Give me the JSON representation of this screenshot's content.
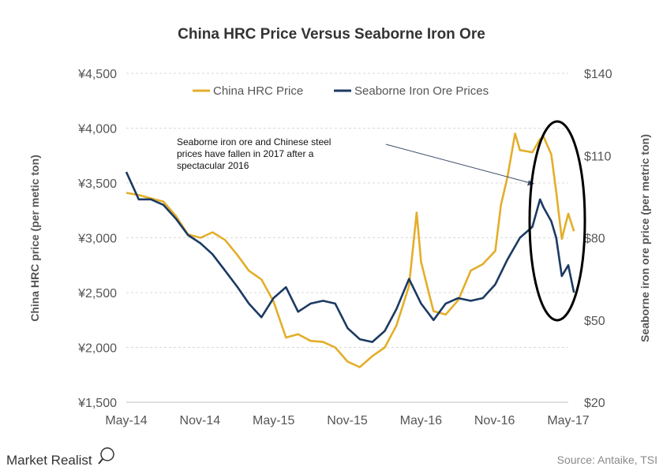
{
  "chart_data": {
    "type": "line",
    "title": "China HRC Price Versus Seaborne Iron Ore",
    "ylabel_left": "China HRC price (per metic ton)",
    "ylabel_right": "Seaborne iron ore price (per metric ton)",
    "ylim_left": [
      1500,
      4500
    ],
    "ylim_right": [
      20,
      140
    ],
    "yticks_left": [
      "¥4,500",
      "¥4,000",
      "¥3,500",
      "¥3,000",
      "¥2,500",
      "¥2,000",
      "¥1,500"
    ],
    "yticks_right": [
      "$140",
      "$110",
      "$80",
      "$50",
      "$20"
    ],
    "xticks": [
      "May-14",
      "Nov-14",
      "May-15",
      "Nov-15",
      "May-16",
      "Nov-16",
      "May-17"
    ],
    "grid": true,
    "legend_position": "top-center",
    "series": [
      {
        "name": "China HRC Price",
        "axis": "left",
        "color": "#E3AE2A",
        "x": [
          "2014-05-01",
          "2014-06-01",
          "2014-07-01",
          "2014-08-01",
          "2014-09-01",
          "2014-10-01",
          "2014-11-01",
          "2014-12-01",
          "2015-01-01",
          "2015-02-01",
          "2015-03-01",
          "2015-04-01",
          "2015-05-01",
          "2015-06-01",
          "2015-07-01",
          "2015-08-01",
          "2015-09-01",
          "2015-10-01",
          "2015-11-01",
          "2015-12-01",
          "2016-01-01",
          "2016-02-01",
          "2016-03-01",
          "2016-04-01",
          "2016-04-20",
          "2016-05-01",
          "2016-05-20",
          "2016-06-01",
          "2016-07-01",
          "2016-08-01",
          "2016-09-01",
          "2016-10-01",
          "2016-11-01",
          "2016-11-15",
          "2016-12-01",
          "2016-12-20",
          "2017-01-01",
          "2017-02-01",
          "2017-02-20",
          "2017-03-01",
          "2017-03-20",
          "2017-04-01",
          "2017-04-15",
          "2017-05-01",
          "2017-05-15"
        ],
        "values": [
          3410,
          3390,
          3360,
          3330,
          3200,
          3030,
          3000,
          3050,
          2980,
          2840,
          2700,
          2620,
          2420,
          2090,
          2120,
          2060,
          2050,
          2000,
          1870,
          1820,
          1920,
          2000,
          2200,
          2560,
          3230,
          2780,
          2500,
          2330,
          2300,
          2430,
          2700,
          2760,
          2880,
          3300,
          3550,
          3950,
          3800,
          3780,
          3900,
          3920,
          3760,
          3420,
          2990,
          3220,
          3060
        ]
      },
      {
        "name": "Seaborne Iron Ore Prices",
        "axis": "right",
        "color": "#1B3A63",
        "x": [
          "2014-05-01",
          "2014-06-01",
          "2014-07-01",
          "2014-08-01",
          "2014-09-01",
          "2014-10-01",
          "2014-11-01",
          "2014-12-01",
          "2015-01-01",
          "2015-02-01",
          "2015-03-01",
          "2015-04-01",
          "2015-05-01",
          "2015-06-01",
          "2015-07-01",
          "2015-08-01",
          "2015-09-01",
          "2015-10-01",
          "2015-11-01",
          "2015-12-01",
          "2016-01-01",
          "2016-02-01",
          "2016-03-01",
          "2016-04-01",
          "2016-05-01",
          "2016-06-01",
          "2016-07-01",
          "2016-08-01",
          "2016-09-01",
          "2016-10-01",
          "2016-11-01",
          "2016-12-01",
          "2017-01-01",
          "2017-02-01",
          "2017-02-20",
          "2017-03-01",
          "2017-03-20",
          "2017-04-01",
          "2017-04-15",
          "2017-05-01",
          "2017-05-15"
        ],
        "values": [
          104,
          94,
          94,
          92,
          87,
          81,
          78,
          74,
          68,
          62,
          56,
          51,
          58,
          62,
          53,
          56,
          57,
          56,
          47,
          43,
          42,
          46,
          54,
          65,
          56,
          50,
          56,
          58,
          57,
          58,
          63,
          72,
          80,
          84,
          94,
          91,
          86,
          80,
          66,
          70,
          60
        ]
      }
    ],
    "annotation": {
      "lines": [
        "Seaborne iron ore and Chinese steel",
        "prices have fallen in 2017 after a",
        "spectacular 2016"
      ]
    }
  },
  "branding": {
    "logo_text": "Market Realist",
    "source": "Source:  Antaike, TSI"
  }
}
